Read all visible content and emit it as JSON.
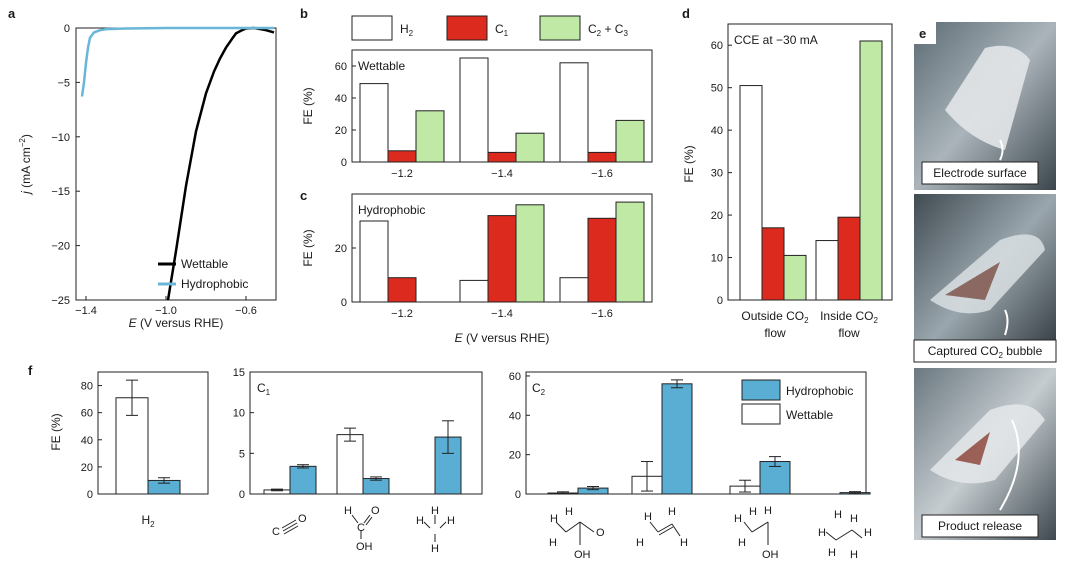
{
  "colors": {
    "h2": "#ffffff",
    "c1": "#dd2a1f",
    "c23": "#bfe9a5",
    "hydrophobic": "#5aaed3",
    "wettable": "#ffffff",
    "wettable_line": "#000000",
    "hydrophobic_line": "#69b6d8"
  },
  "chart_data": [
    {
      "panel": "a",
      "type": "line",
      "xlabel_pre": "E",
      "xlabel_post": " (V versus RHE)",
      "ylabel_pre": "j",
      "ylabel_post": " (mA cm",
      "ylabel_sup": "−2",
      "ylabel_close": ")",
      "xlim": [
        -1.45,
        -0.45
      ],
      "ylim": [
        -25,
        0
      ],
      "x_ticks": [
        -1.4,
        -1.0,
        -0.6
      ],
      "x_tick_labels": [
        "−1.4",
        "−1.0",
        "−0.6"
      ],
      "y_ticks": [
        0,
        -5,
        -10,
        -15,
        -20,
        -25
      ],
      "y_tick_labels": [
        "0",
        "−5",
        "−10",
        "−15",
        "−20",
        "−25"
      ],
      "series": [
        {
          "name": "Wettable",
          "x": [
            -0.99,
            -0.95,
            -0.9,
            -0.85,
            -0.8,
            -0.76,
            -0.73,
            -0.7,
            -0.67,
            -0.65,
            -0.62,
            -0.6,
            -0.56,
            -0.5,
            -0.46
          ],
          "y": [
            -25,
            -20.5,
            -14.5,
            -9.5,
            -6.0,
            -4.0,
            -2.8,
            -1.8,
            -1.0,
            -0.5,
            -0.2,
            -0.05,
            0.0,
            -0.2,
            -0.4
          ]
        },
        {
          "name": "Hydrophobic",
          "x": [
            -1.42,
            -1.41,
            -1.4,
            -1.39,
            -1.38,
            -1.36,
            -1.33,
            -1.3,
            -1.2,
            -1.0,
            -0.8,
            -0.6,
            -0.46
          ],
          "y": [
            -6.3,
            -5.0,
            -3.2,
            -1.8,
            -0.9,
            -0.4,
            -0.2,
            -0.1,
            -0.05,
            0.0,
            0.0,
            0.0,
            0.0
          ]
        }
      ]
    },
    {
      "panel": "b",
      "type": "bar",
      "title": "Wettable",
      "ylabel": "FE (%)",
      "ylim": [
        0,
        70
      ],
      "y_ticks": [
        0,
        20,
        40,
        60
      ],
      "categories": [
        "−1.2",
        "−1.4",
        "−1.6"
      ],
      "series": [
        {
          "name": "H2",
          "values": [
            49,
            65,
            62
          ]
        },
        {
          "name": "C1",
          "values": [
            7,
            6,
            6
          ]
        },
        {
          "name": "C2 + C3",
          "values": [
            32,
            18,
            26
          ]
        }
      ]
    },
    {
      "panel": "c",
      "type": "bar",
      "title": "Hydrophobic",
      "ylabel": "FE (%)",
      "xlabel_pre": "E",
      "xlabel_post": " (V versus RHE)",
      "ylim": [
        0,
        40
      ],
      "y_ticks": [
        0,
        20
      ],
      "categories": [
        "−1.2",
        "−1.4",
        "−1.6"
      ],
      "series": [
        {
          "name": "H2",
          "values": [
            30,
            8,
            9
          ]
        },
        {
          "name": "C1",
          "values": [
            9,
            32,
            31
          ]
        },
        {
          "name": "C2 + C3",
          "values": [
            0,
            36,
            37
          ]
        }
      ]
    },
    {
      "panel": "d",
      "type": "bar",
      "title": "CCE at −30 mA",
      "ylabel": "FE (%)",
      "ylim": [
        0,
        65
      ],
      "y_ticks": [
        0,
        10,
        20,
        30,
        40,
        50,
        60
      ],
      "categories": [
        "Outside CO2 flow",
        "Inside CO2 flow"
      ],
      "series": [
        {
          "name": "H2",
          "values": [
            50.5,
            14
          ]
        },
        {
          "name": "C1",
          "values": [
            17,
            19.5
          ]
        },
        {
          "name": "C2 + C3",
          "values": [
            10.5,
            61
          ]
        }
      ]
    },
    {
      "panel": "f-H2",
      "type": "bar",
      "ylabel": "FE (%)",
      "ylim": [
        0,
        90
      ],
      "y_ticks": [
        0,
        20,
        40,
        60,
        80
      ],
      "categories": [
        "H2"
      ],
      "series": [
        {
          "name": "Wettable",
          "values": [
            71
          ],
          "errors": [
            13
          ]
        },
        {
          "name": "Hydrophobic",
          "values": [
            10
          ],
          "errors": [
            2
          ]
        }
      ]
    },
    {
      "panel": "f-C1",
      "type": "bar",
      "label": "C",
      "label_sub": "1",
      "ylim": [
        0,
        15
      ],
      "y_ticks": [
        0,
        5,
        10,
        15
      ],
      "categories": [
        "CO",
        "HCOOH",
        "CH4"
      ],
      "series": [
        {
          "name": "Wettable",
          "values": [
            0.5,
            7.3,
            0
          ],
          "errors": [
            0.1,
            0.8,
            0
          ]
        },
        {
          "name": "Hydrophobic",
          "values": [
            3.4,
            1.9,
            7.0
          ],
          "errors": [
            0.2,
            0.2,
            2.0
          ]
        }
      ]
    },
    {
      "panel": "f-C2",
      "type": "bar",
      "label": "C",
      "label_sub": "2",
      "ylim": [
        0,
        62
      ],
      "y_ticks": [
        0,
        20,
        40,
        60
      ],
      "categories": [
        "CH3COOH",
        "C2H4",
        "C2H5OH",
        "C2H6"
      ],
      "series": [
        {
          "name": "Wettable",
          "values": [
            0.5,
            9,
            4,
            0
          ],
          "errors": [
            0.6,
            7.5,
            3,
            0
          ]
        },
        {
          "name": "Hydrophobic",
          "values": [
            3,
            56,
            16.5,
            0.7
          ],
          "errors": [
            0.8,
            2,
            2.5,
            0.5
          ]
        }
      ]
    }
  ],
  "panel_labels": {
    "a": "a",
    "b": "b",
    "c": "c",
    "d": "d",
    "e": "e",
    "f": "f"
  },
  "legend_a": [
    "Wettable",
    "Hydrophobic"
  ],
  "legend_bc": {
    "h2": "H",
    "h2_sub": "2",
    "c1": "C",
    "c1_sub": "1",
    "c23_a": "C",
    "c23_a_sub": "2",
    "c23_mid": " + C",
    "c23_b_sub": "3"
  },
  "legend_f": [
    "Hydrophobic",
    "Wettable"
  ],
  "d_categories": {
    "out_l1": "Outside CO",
    "out_sub": "2",
    "out_l2": "flow",
    "in_l1": "Inside CO",
    "in_sub": "2",
    "in_l2": "flow"
  },
  "f_h2_label": {
    "main": "H",
    "sub": "2"
  },
  "photos": {
    "p1": "Electrode surface",
    "p2_main": "Captured CO",
    "p2_sub": "2",
    "p2_tail": " bubble",
    "p3": "Product release"
  },
  "molecules": {
    "co_c": "C",
    "co_o": "O",
    "hcooh": {
      "h": "H",
      "c": "C",
      "o": "O",
      "oh": "OH"
    },
    "ch4": {
      "h": "H",
      "c": "C"
    },
    "acetic": {
      "h": "H",
      "o": "O",
      "oh": "OH"
    },
    "ethylene": {
      "h": "H"
    },
    "ethanol": {
      "h": "H",
      "oh": "OH"
    },
    "ethane": {
      "h": "H"
    }
  }
}
